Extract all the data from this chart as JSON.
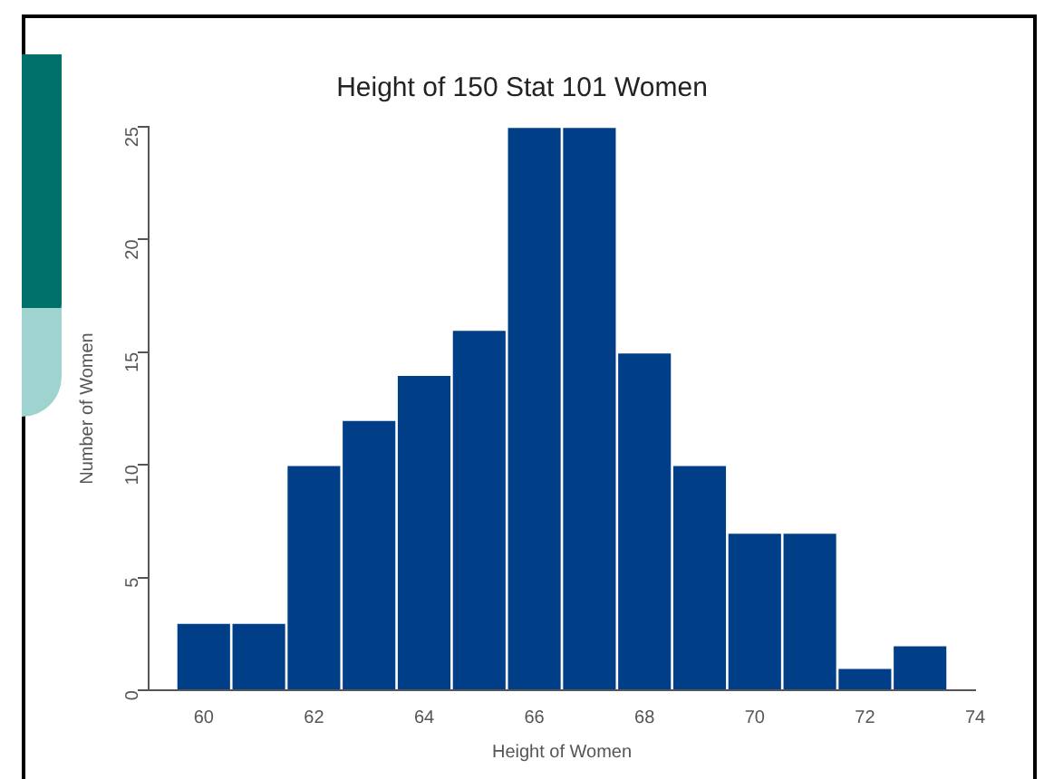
{
  "chart_data": {
    "type": "histogram",
    "title": "Height of 150 Stat 101 Women",
    "xlabel": "Height of Women",
    "ylabel": "Number of Women",
    "bins": [
      59.5,
      60.5,
      61.5,
      62.5,
      63.5,
      64.5,
      65.5,
      66.5,
      67.5,
      68.5,
      69.5,
      70.5,
      71.5,
      72.5,
      73.5
    ],
    "values": [
      3,
      3,
      10,
      12,
      14,
      16,
      25,
      25,
      15,
      10,
      7,
      7,
      1,
      2
    ],
    "color": "#003f87",
    "xlim": [
      59,
      74
    ],
    "xticks": [
      60,
      62,
      64,
      66,
      68,
      70,
      72,
      74
    ],
    "ylim": [
      0,
      25
    ],
    "yticks": [
      0,
      5,
      10,
      15,
      20,
      25
    ],
    "grid": false
  }
}
